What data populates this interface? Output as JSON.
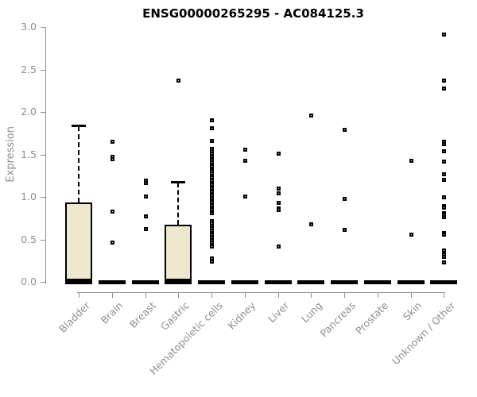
{
  "chart_data": {
    "type": "boxplot",
    "title": "ENSG00000265295 - AC084125.3",
    "ylabel": "Expression",
    "xlabel": "",
    "ylim": [
      0.0,
      3.0
    ],
    "yticks": [
      "0.0",
      "0.5",
      "1.0",
      "1.5",
      "2.0",
      "2.5",
      "3.0"
    ],
    "grid": false,
    "legend": "none",
    "axis_color": "#8e8e8e",
    "box_fill": "#ede7cd",
    "box_stroke": "#000000",
    "point_style": "open-black-square",
    "series": [
      {
        "category": "Bladder",
        "median": 0.0,
        "box": {
          "q1": 0.02,
          "q3": 0.93,
          "whisker_high": 1.85
        },
        "points": []
      },
      {
        "category": "Brain",
        "median": 0.0,
        "box": null,
        "points": [
          1.65,
          1.48,
          1.45,
          0.83,
          0.47
        ]
      },
      {
        "category": "Breast",
        "median": 0.0,
        "box": null,
        "points": [
          1.2,
          1.17,
          1.01,
          0.78,
          0.63
        ]
      },
      {
        "category": "Gastric",
        "median": 0.0,
        "box": {
          "q1": 0.02,
          "q3": 0.67,
          "whisker_high": 1.19
        },
        "points": [
          2.37
        ]
      },
      {
        "category": "Hematopoietic cells",
        "median": 0.0,
        "box": null,
        "points": [
          1.91,
          1.81,
          1.66,
          1.57,
          1.54,
          1.51,
          1.49,
          1.46,
          1.44,
          1.41,
          1.38,
          1.36,
          1.33,
          1.31,
          1.28,
          1.25,
          1.23,
          1.2,
          1.17,
          1.15,
          1.12,
          1.1,
          1.07,
          1.04,
          1.02,
          0.99,
          0.96,
          0.94,
          0.91,
          0.88,
          0.86,
          0.83,
          0.81,
          0.72,
          0.69,
          0.66,
          0.64,
          0.61,
          0.56,
          0.53,
          0.5,
          0.47,
          0.44,
          0.42,
          0.28,
          0.24
        ]
      },
      {
        "category": "Kidney",
        "median": 0.0,
        "box": null,
        "points": [
          1.56,
          1.43,
          1.01
        ]
      },
      {
        "category": "Liver",
        "median": 0.0,
        "box": null,
        "points": [
          1.51,
          1.1,
          1.05,
          0.93,
          0.87,
          0.85,
          0.42
        ]
      },
      {
        "category": "Lung",
        "median": 0.0,
        "box": null,
        "points": [
          1.96,
          0.68
        ]
      },
      {
        "category": "Pancreas",
        "median": 0.0,
        "box": null,
        "points": [
          1.79,
          0.98,
          0.62
        ]
      },
      {
        "category": "Prostate",
        "median": 0.0,
        "box": null,
        "points": []
      },
      {
        "category": "Skin",
        "median": 0.0,
        "box": null,
        "points": [
          1.43,
          0.56
        ]
      },
      {
        "category": "Unknown / Other",
        "median": 0.0,
        "box": null,
        "points": [
          2.92,
          2.37,
          2.28,
          1.65,
          1.63,
          1.54,
          1.42,
          1.27,
          1.21,
          1.0,
          0.9,
          0.88,
          0.81,
          0.79,
          0.77,
          0.58,
          0.56,
          0.37,
          0.33,
          0.3,
          0.23
        ]
      }
    ]
  }
}
